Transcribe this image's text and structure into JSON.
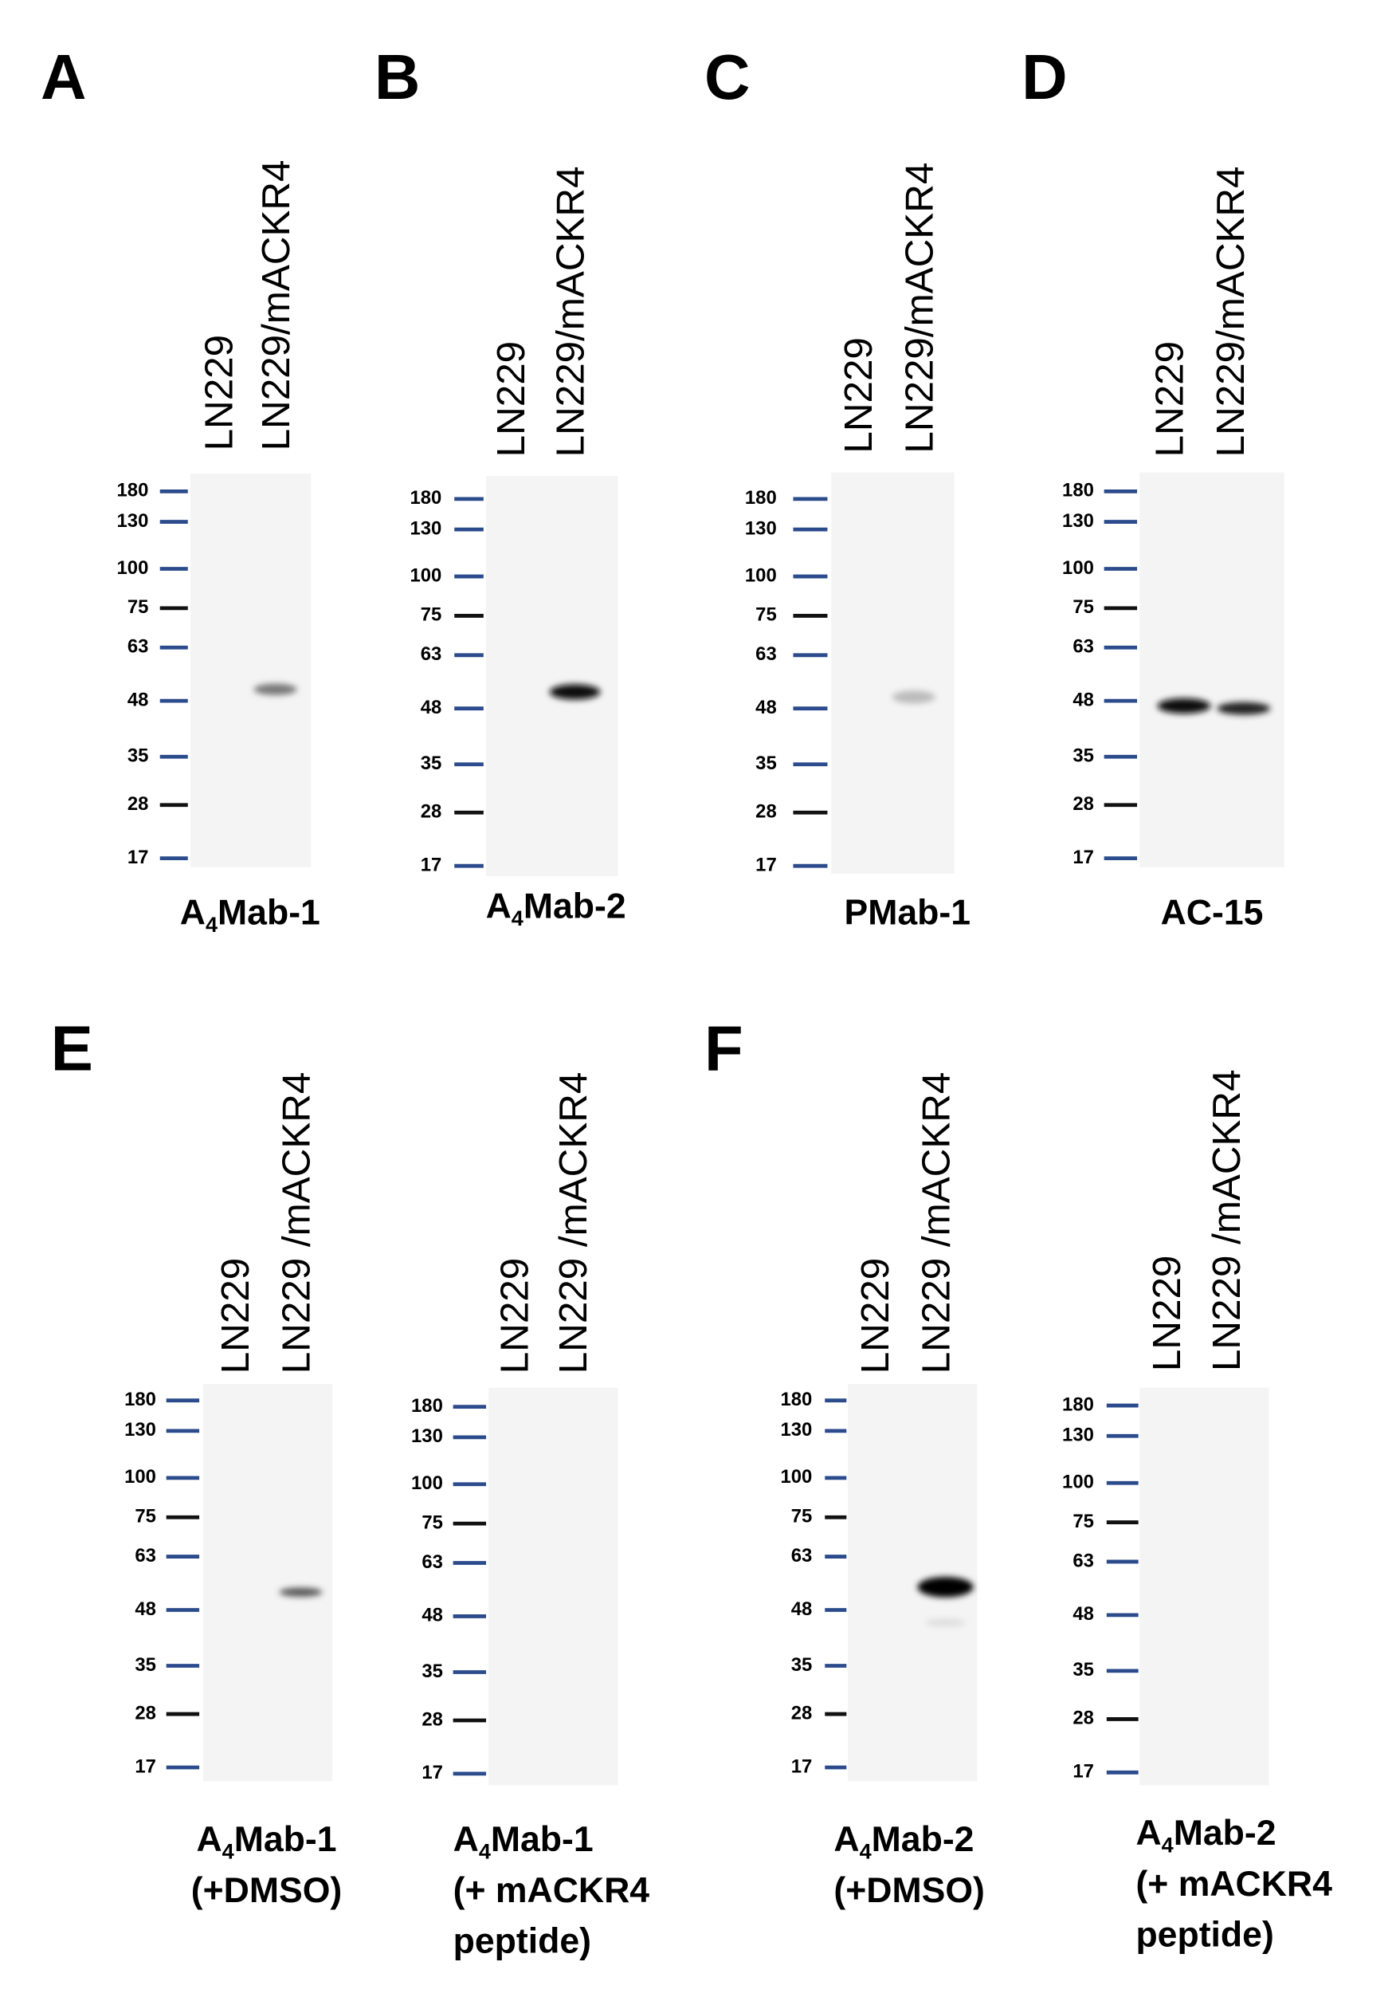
{
  "panels": [
    {
      "letter": "A",
      "lanes": [
        "LN229",
        "LN229/mACKR4"
      ],
      "markers": [
        "180",
        "130",
        "100",
        "75",
        "63",
        "48",
        "35",
        "28",
        "17"
      ],
      "caption": [
        [
          {
            "text": "A"
          },
          {
            "sub": "4"
          },
          {
            "text": "Mab-1"
          }
        ]
      ]
    },
    {
      "letter": "B",
      "lanes": [
        "LN229",
        "LN229/mACKR4"
      ],
      "markers": [
        "180",
        "130",
        "100",
        "75",
        "63",
        "48",
        "35",
        "28",
        "17"
      ],
      "caption": [
        [
          {
            "text": "A"
          },
          {
            "sub": "4"
          },
          {
            "text": "Mab-2"
          }
        ]
      ]
    },
    {
      "letter": "C",
      "lanes": [
        "LN229",
        "LN229/mACKR4"
      ],
      "markers": [
        "180",
        "130",
        "100",
        "75",
        "63",
        "48",
        "35",
        "28",
        "17"
      ],
      "caption": [
        [
          {
            "text": "PMab-1"
          }
        ]
      ]
    },
    {
      "letter": "D",
      "lanes": [
        "LN229",
        "LN229/mACKR4"
      ],
      "markers": [
        "180",
        "130",
        "100",
        "75",
        "63",
        "48",
        "35",
        "28",
        "17"
      ],
      "caption": [
        [
          {
            "text": "AC-15"
          }
        ]
      ]
    },
    {
      "letter": "E",
      "lanes": [
        "LN229",
        "LN229 /mACKR4"
      ],
      "markers": [
        "180",
        "130",
        "100",
        "75",
        "63",
        "48",
        "35",
        "28",
        "17"
      ],
      "caption": [
        [
          {
            "text": "A"
          },
          {
            "sub": "4"
          },
          {
            "text": "Mab-1"
          }
        ],
        [
          {
            "text": "(+DMSO)"
          }
        ]
      ]
    },
    {
      "lanes": [
        "LN229",
        "LN229 /mACKR4"
      ],
      "markers": [
        "180",
        "130",
        "100",
        "75",
        "63",
        "48",
        "35",
        "28",
        "17"
      ],
      "caption": [
        [
          {
            "text": "A"
          },
          {
            "sub": "4"
          },
          {
            "text": "Mab-1"
          }
        ],
        [
          {
            "text": "(+ mACKR4"
          }
        ],
        [
          {
            "text": "peptide)"
          }
        ]
      ]
    },
    {
      "letter": "F",
      "lanes": [
        "LN229",
        "LN229 /mACKR4"
      ],
      "markers": [
        "180",
        "130",
        "100",
        "75",
        "63",
        "48",
        "35",
        "28",
        "17"
      ],
      "caption": [
        [
          {
            "text": "A"
          },
          {
            "sub": "4"
          },
          {
            "text": "Mab-2"
          }
        ],
        [
          {
            "text": "(+DMSO)"
          }
        ]
      ]
    },
    {
      "lanes": [
        "LN229",
        "LN229 /mACKR4"
      ],
      "markers": [
        "180",
        "130",
        "100",
        "75",
        "63",
        "48",
        "35",
        "28",
        "17"
      ],
      "caption": [
        [
          {
            "text": "A"
          },
          {
            "sub": "4"
          },
          {
            "text": "Mab-2"
          }
        ],
        [
          {
            "text": "(+ mACKR4"
          }
        ],
        [
          {
            "text": "peptide)"
          }
        ]
      ]
    }
  ]
}
